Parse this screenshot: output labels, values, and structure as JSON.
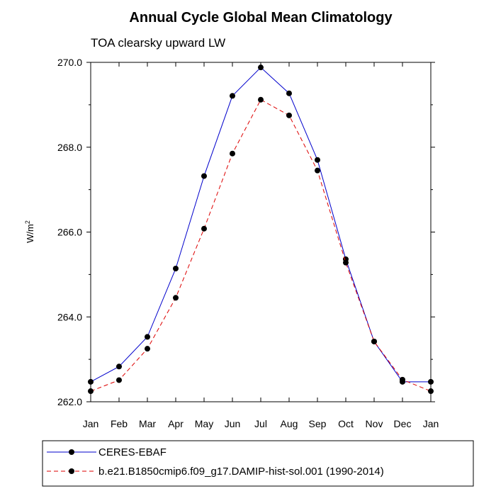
{
  "chart_data": {
    "type": "line",
    "title": "Annual Cycle Global Mean Climatology",
    "subtitle": "TOA clearsky upward LW",
    "ylabel_base": "W/m",
    "ylabel_sup": "2",
    "xlabel": "",
    "categories": [
      "Jan",
      "Feb",
      "Mar",
      "Apr",
      "May",
      "Jun",
      "Jul",
      "Aug",
      "Sep",
      "Oct",
      "Nov",
      "Dec",
      "Jan"
    ],
    "ylim": [
      262.0,
      270.0
    ],
    "yticks": [
      262.0,
      264.0,
      266.0,
      268.0,
      270.0
    ],
    "ytick_labels": [
      "262.0",
      "264.0",
      "266.0",
      "268.0",
      "270.0"
    ],
    "grid": false,
    "legend_placement": "bottom",
    "series": [
      {
        "name": "CERES-EBAF",
        "color": "#0000cc",
        "dash": "solid",
        "values": [
          262.47,
          262.83,
          263.53,
          265.14,
          267.32,
          269.21,
          269.88,
          269.27,
          267.7,
          265.36,
          263.42,
          262.47,
          262.47
        ]
      },
      {
        "name": "b.e21.B1850cmip6.f09_g17.DAMIP-hist-sol.001 (1990-2014)",
        "color": "#dd0000",
        "dash": "dashed",
        "values": [
          262.25,
          262.51,
          263.25,
          264.45,
          266.08,
          267.85,
          269.12,
          268.75,
          267.45,
          265.28,
          263.42,
          262.52,
          262.25
        ]
      }
    ]
  }
}
